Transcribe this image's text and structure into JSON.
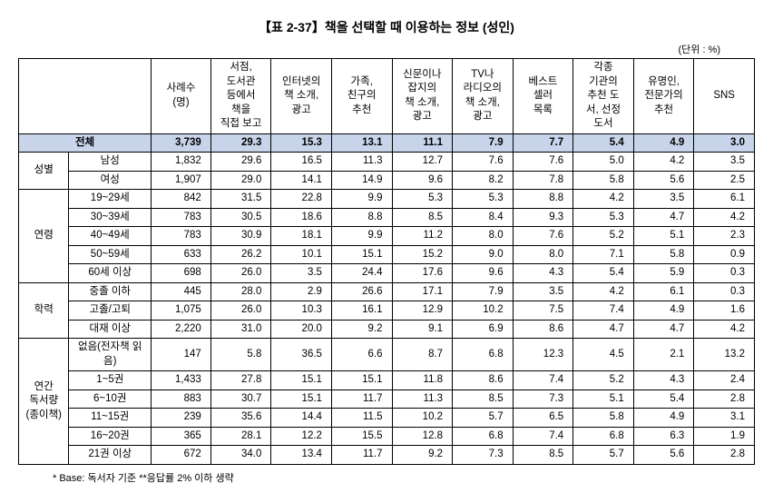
{
  "title": "【표 2-37】책을 선택할 때 이용하는 정보 (성인)",
  "unit": "(단위 : %)",
  "footnote": "* Base: 독서자 기준 **응답률 2% 이하 생략",
  "columns": [
    "사례수\n(명)",
    "서점,\n도서관\n등에서\n책을\n직접 보고",
    "인터넷의\n책 소개,\n광고",
    "가족,\n친구의\n추천",
    "신문이나\n잡지의\n책 소개,\n광고",
    "TV나\n라디오의\n책 소개,\n광고",
    "베스트\n셀러\n목록",
    "각종\n기관의\n추천 도\n서, 선정\n도서",
    "유명인,\n전문가의\n추천",
    "SNS"
  ],
  "total_label": "전체",
  "total_row": [
    "3,739",
    "29.3",
    "15.3",
    "13.1",
    "11.1",
    "7.9",
    "7.7",
    "5.4",
    "4.9",
    "3.0"
  ],
  "groups": [
    {
      "label": "성별",
      "rows": [
        {
          "label": "남성",
          "vals": [
            "1,832",
            "29.6",
            "16.5",
            "11.3",
            "12.7",
            "7.6",
            "7.6",
            "5.0",
            "4.2",
            "3.5"
          ]
        },
        {
          "label": "여성",
          "vals": [
            "1,907",
            "29.0",
            "14.1",
            "14.9",
            "9.6",
            "8.2",
            "7.8",
            "5.8",
            "5.6",
            "2.5"
          ]
        }
      ]
    },
    {
      "label": "연령",
      "rows": [
        {
          "label": "19~29세",
          "vals": [
            "842",
            "31.5",
            "22.8",
            "9.9",
            "5.3",
            "5.3",
            "8.8",
            "4.2",
            "3.5",
            "6.1"
          ]
        },
        {
          "label": "30~39세",
          "vals": [
            "783",
            "30.5",
            "18.6",
            "8.8",
            "8.5",
            "8.4",
            "9.3",
            "5.3",
            "4.7",
            "4.2"
          ]
        },
        {
          "label": "40~49세",
          "vals": [
            "783",
            "30.9",
            "18.1",
            "9.9",
            "11.2",
            "8.0",
            "7.6",
            "5.2",
            "5.1",
            "2.3"
          ]
        },
        {
          "label": "50~59세",
          "vals": [
            "633",
            "26.2",
            "10.1",
            "15.1",
            "15.2",
            "9.0",
            "8.0",
            "7.1",
            "5.8",
            "0.9"
          ]
        },
        {
          "label": "60세 이상",
          "vals": [
            "698",
            "26.0",
            "3.5",
            "24.4",
            "17.6",
            "9.6",
            "4.3",
            "5.4",
            "5.9",
            "0.3"
          ]
        }
      ]
    },
    {
      "label": "학력",
      "rows": [
        {
          "label": "중졸 이하",
          "vals": [
            "445",
            "28.0",
            "2.9",
            "26.6",
            "17.1",
            "7.9",
            "3.5",
            "4.2",
            "6.1",
            "0.3"
          ]
        },
        {
          "label": "고졸/고퇴",
          "vals": [
            "1,075",
            "26.0",
            "10.3",
            "16.1",
            "12.9",
            "10.2",
            "7.5",
            "7.4",
            "4.9",
            "1.6"
          ]
        },
        {
          "label": "대재 이상",
          "vals": [
            "2,220",
            "31.0",
            "20.0",
            "9.2",
            "9.1",
            "6.9",
            "8.6",
            "4.7",
            "4.7",
            "4.2"
          ]
        }
      ]
    },
    {
      "label": "연간\n독서량\n(종이책)",
      "rows": [
        {
          "label": "없음(전자책 읽음)",
          "vals": [
            "147",
            "5.8",
            "36.5",
            "6.6",
            "8.7",
            "6.8",
            "12.3",
            "4.5",
            "2.1",
            "13.2"
          ]
        },
        {
          "label": "1~5권",
          "vals": [
            "1,433",
            "27.8",
            "15.1",
            "15.1",
            "11.8",
            "8.6",
            "7.4",
            "5.2",
            "4.3",
            "2.4"
          ]
        },
        {
          "label": "6~10권",
          "vals": [
            "883",
            "30.7",
            "15.1",
            "11.7",
            "11.3",
            "8.5",
            "7.3",
            "5.1",
            "5.4",
            "2.8"
          ]
        },
        {
          "label": "11~15권",
          "vals": [
            "239",
            "35.6",
            "14.4",
            "11.5",
            "10.2",
            "5.7",
            "6.5",
            "5.8",
            "4.9",
            "3.1"
          ]
        },
        {
          "label": "16~20권",
          "vals": [
            "365",
            "28.1",
            "12.2",
            "15.5",
            "12.8",
            "6.8",
            "7.4",
            "6.8",
            "6.3",
            "1.9"
          ]
        },
        {
          "label": "21권 이상",
          "vals": [
            "672",
            "34.0",
            "13.4",
            "11.7",
            "9.2",
            "7.3",
            "8.5",
            "5.7",
            "5.6",
            "2.8"
          ]
        }
      ]
    }
  ]
}
